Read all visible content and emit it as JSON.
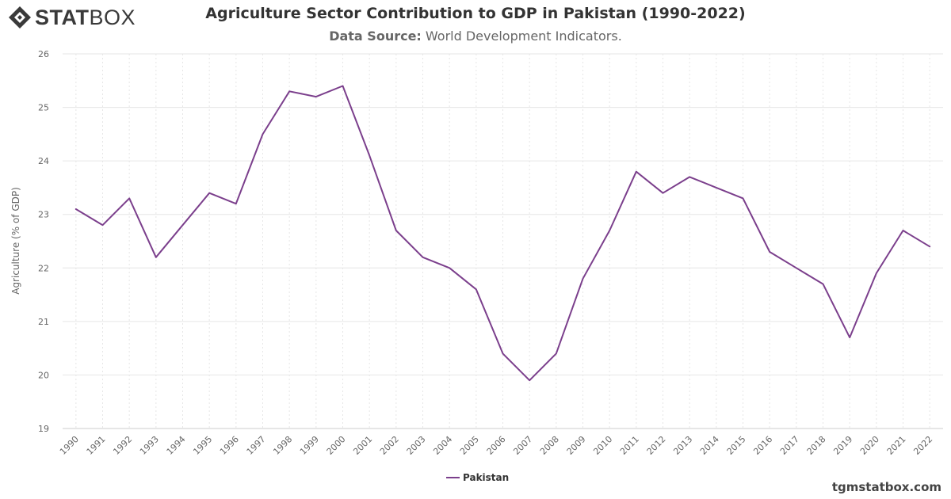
{
  "logo": {
    "text_bold": "STAT",
    "text_light": "BOX"
  },
  "header": {
    "title": "Agriculture Sector Contribution to GDP in Pakistan (1990-2022)",
    "subtitle_label": "Data Source:",
    "subtitle_value": "World Development Indicators."
  },
  "footer": {
    "site": "tgmstatbox.com"
  },
  "colors": {
    "series": "#7b3f8c",
    "grid": "#e6e6e6",
    "axis_text": "#666666"
  },
  "chart_data": {
    "type": "line",
    "title": "Agriculture Sector Contribution to GDP in Pakistan (1990-2022)",
    "xlabel": "",
    "ylabel": "Agriculture (% of GDP)",
    "ylim": [
      19,
      26
    ],
    "yticks": [
      19,
      20,
      21,
      22,
      23,
      24,
      25,
      26
    ],
    "grid": true,
    "legend_position": "bottom-center",
    "x": [
      "1990",
      "1991",
      "1992",
      "1993",
      "1994",
      "1995",
      "1996",
      "1997",
      "1998",
      "1999",
      "2000",
      "2001",
      "2002",
      "2003",
      "2004",
      "2005",
      "2006",
      "2007",
      "2008",
      "2009",
      "2010",
      "2011",
      "2012",
      "2013",
      "2014",
      "2015",
      "2016",
      "2017",
      "2018",
      "2019",
      "2020",
      "2021",
      "2022"
    ],
    "series": [
      {
        "name": "Pakistan",
        "values": [
          23.1,
          22.8,
          23.3,
          22.2,
          22.8,
          23.4,
          23.2,
          24.5,
          25.3,
          25.2,
          25.4,
          24.1,
          22.7,
          22.2,
          22.0,
          21.6,
          20.4,
          19.9,
          20.4,
          21.8,
          22.7,
          23.8,
          23.4,
          23.7,
          23.5,
          23.3,
          22.3,
          22.0,
          21.7,
          20.7,
          21.9,
          22.7,
          22.4
        ]
      }
    ]
  }
}
